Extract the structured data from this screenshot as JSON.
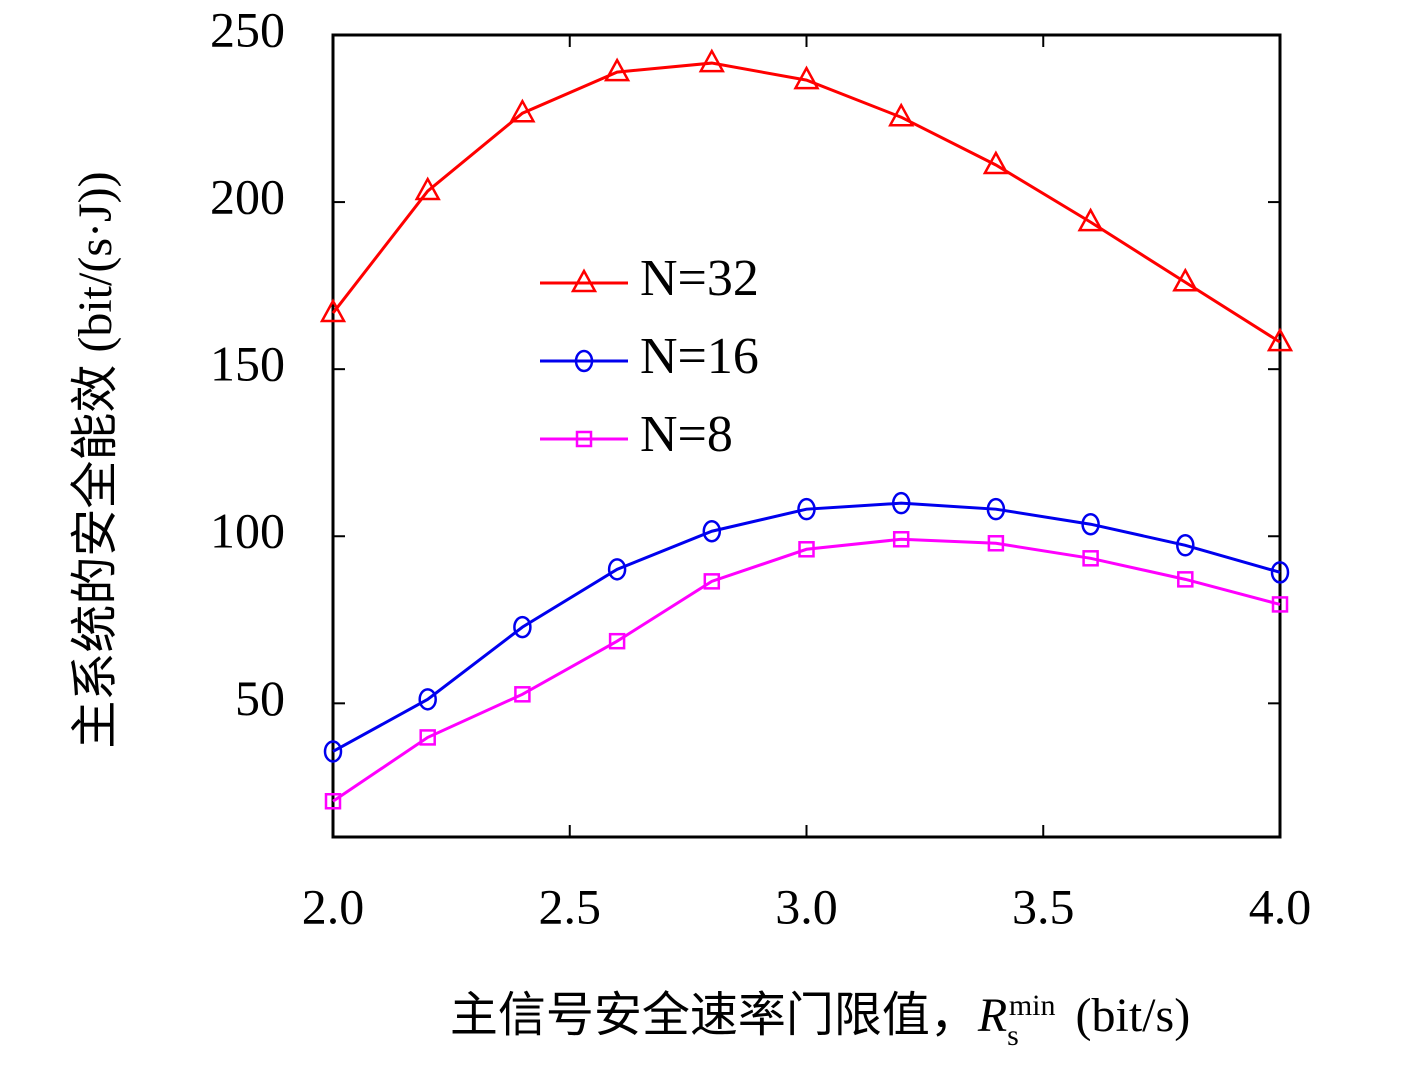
{
  "chart_data": {
    "type": "line",
    "ylabel": "主系统的安全能效 (bit/(s·J))",
    "xlabel": {
      "prefix": "主信号安全速率门限值，",
      "symbol": "R",
      "subscript": "s",
      "superscript": "min",
      "unit": "(bit/s)"
    },
    "x": [
      2.0,
      2.2,
      2.4,
      2.6,
      2.8,
      3.0,
      3.2,
      3.4,
      3.6,
      3.8,
      4.0
    ],
    "series": [
      {
        "name": "N=32",
        "color": "#ff0000",
        "marker": "triangle",
        "values": [
          166.8,
          203.3,
          226.6,
          238.9,
          241.6,
          236.5,
          225.4,
          211.1,
          194.0,
          176.0,
          158.1
        ]
      },
      {
        "name": "N=16",
        "color": "#0000ee",
        "marker": "circle",
        "values": [
          35.6,
          51.2,
          72.8,
          90.1,
          101.5,
          108.1,
          109.9,
          108.1,
          103.6,
          97.3,
          89.2
        ]
      },
      {
        "name": "N=8",
        "color": "#ff00ff",
        "marker": "square",
        "values": [
          20.7,
          39.8,
          52.7,
          68.6,
          86.5,
          96.1,
          99.1,
          97.9,
          93.4,
          87.1,
          79.6
        ]
      }
    ],
    "xlim": [
      2.0,
      4.0
    ],
    "xticks": [
      {
        "value": 2.0,
        "label": "2.0"
      },
      {
        "value": 2.5,
        "label": "2.5"
      },
      {
        "value": 3.0,
        "label": "3.0"
      },
      {
        "value": 3.5,
        "label": "3.5"
      },
      {
        "value": 4.0,
        "label": "4.0"
      }
    ],
    "ylim": [
      10,
      250
    ],
    "yticks": [
      50,
      100,
      150,
      200,
      250
    ],
    "grid": false
  }
}
